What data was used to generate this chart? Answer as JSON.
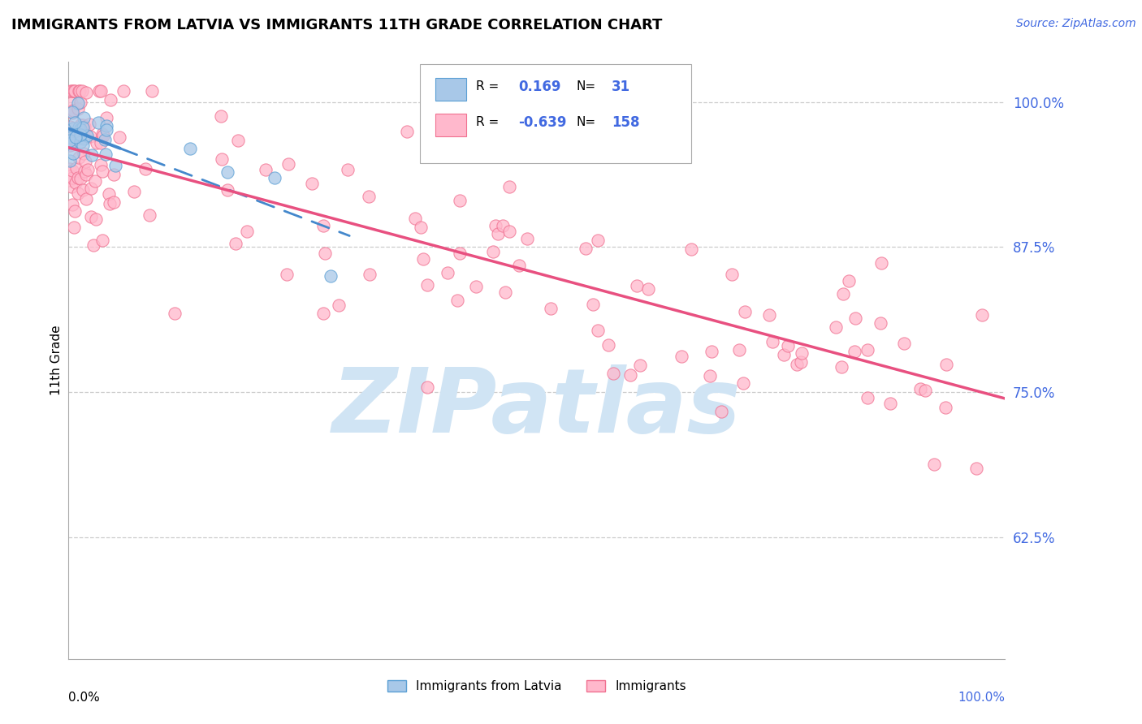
{
  "title": "IMMIGRANTS FROM LATVIA VS IMMIGRANTS 11TH GRADE CORRELATION CHART",
  "source": "Source: ZipAtlas.com",
  "xlabel_center_blue": "Immigrants from Latvia",
  "xlabel_center_pink": "Immigrants",
  "ylabel": "11th Grade",
  "r_blue": 0.169,
  "n_blue": 31,
  "r_pink": -0.639,
  "n_pink": 158,
  "blue_scatter_color": "#a8c8e8",
  "blue_edge_color": "#5a9fd4",
  "blue_line_color": "#4488cc",
  "pink_scatter_color": "#ffb8cc",
  "pink_edge_color": "#f07090",
  "pink_line_color": "#e85080",
  "watermark_color": "#d0e4f4",
  "grid_color": "#cccccc",
  "ytick_color": "#4169e1",
  "source_color": "#4169e1",
  "legend_text_color": "#4169e1"
}
